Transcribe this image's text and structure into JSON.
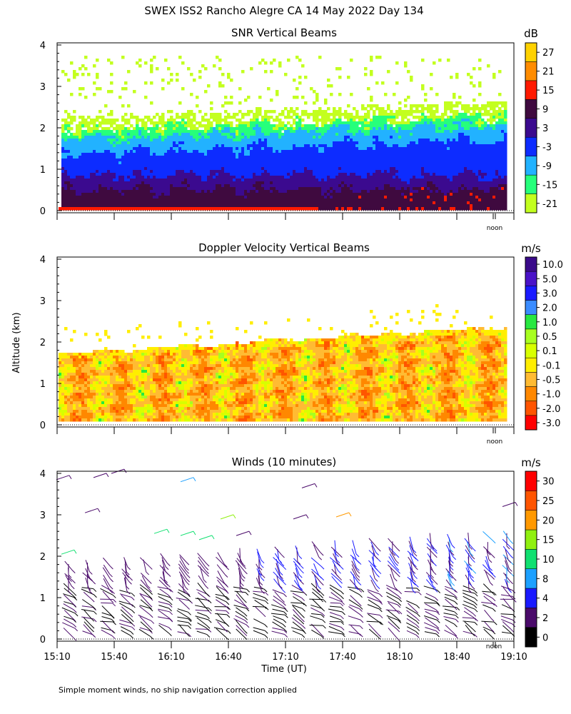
{
  "figure_title": "SWEX ISS2 Rancho Alegre CA  14 May 2022 Day 134",
  "y_axis_label": "Altitude (km)",
  "x_axis_label": "Time (UT)",
  "noon_label": "noon",
  "footnote": "Simple moment winds, no ship navigation correction applied",
  "colors": {
    "snr": [
      "#c3ff1f",
      "#26ff7b",
      "#22b2ff",
      "#0d2cff",
      "#3b0a8f",
      "#3f0a3f",
      "#ff1a00",
      "#ff8c00",
      "#ffd200"
    ],
    "doppler": [
      "#ff0000",
      "#ff5500",
      "#ff8800",
      "#ffbb33",
      "#ffee00",
      "#d8ff00",
      "#a8ff20",
      "#28e840",
      "#3a8cff",
      "#1a1aff",
      "#4a12c8",
      "#3a0a8a",
      "#2a0a2a"
    ],
    "winds": [
      "#000000",
      "#4a0a6a",
      "#1a1aff",
      "#1ca0ff",
      "#10e070",
      "#90f010",
      "#ff9900",
      "#ff5500",
      "#ff0000"
    ]
  },
  "chart_data": [
    {
      "type": "heatmap",
      "title": "SNR Vertical Beams",
      "ylabel": "Altitude (km)",
      "unit": "dB",
      "ylim": [
        0,
        4
      ],
      "y_ticks": [
        "0",
        "1",
        "2",
        "3",
        "4"
      ],
      "x_range_hours": [
        15.1667,
        19.1667
      ],
      "colorbar_labels": [
        "-21",
        "-15",
        "-9",
        "-3",
        "3",
        "9",
        "15",
        "21",
        "27"
      ],
      "layers": [
        {
          "level": "15",
          "from_km": 0.0,
          "to_km": 0.15
        },
        {
          "level": "9",
          "from_km": 0.15,
          "to_km": 0.55
        },
        {
          "level": "3",
          "from_km": 0.55,
          "to_km": 0.95
        },
        {
          "level": "-3",
          "from_km": 0.95,
          "to_km": 1.4
        },
        {
          "level": "-9",
          "from_km": 1.4,
          "to_km": 1.75
        },
        {
          "level": "-15",
          "from_km": 1.75,
          "to_km": 1.95
        },
        {
          "level": "-21",
          "from_km": 1.95,
          "to_km": 2.3
        }
      ]
    },
    {
      "type": "heatmap",
      "title": "Doppler Velocity Vertical Beams",
      "ylabel": "Altitude (km)",
      "unit": "m/s",
      "ylim": [
        0,
        4
      ],
      "y_ticks": [
        "0",
        "1",
        "2",
        "3",
        "4"
      ],
      "x_range_hours": [
        15.1667,
        19.1667
      ],
      "colorbar_labels": [
        "-3.0",
        "-2.0",
        "-1.0",
        "-0.5",
        "-0.1",
        "0.1",
        "0.5",
        "1.0",
        "2.0",
        "3.0",
        "5.0",
        "10.0"
      ],
      "dominant_range_m_s": [
        -1.0,
        0.1
      ],
      "top_of_data_km": [
        1.75,
        2.45
      ]
    },
    {
      "type": "scatter",
      "title": "Winds (10 minutes)",
      "ylabel": "Altitude (km)",
      "xlabel": "Time (UT)",
      "unit": "m/s",
      "ylim": [
        0,
        4
      ],
      "y_ticks": [
        "0",
        "1",
        "2",
        "3",
        "4"
      ],
      "x_ticks": [
        "15:10",
        "15:40",
        "16:10",
        "16:40",
        "17:10",
        "17:40",
        "18:10",
        "18:40",
        "19:10"
      ],
      "x_range_hours": [
        15.1667,
        19.1667
      ],
      "colorbar_labels": [
        "0",
        "2",
        "4",
        "8",
        "10",
        "15",
        "20",
        "25",
        "30"
      ],
      "profile_interval_minutes": 10
    }
  ]
}
